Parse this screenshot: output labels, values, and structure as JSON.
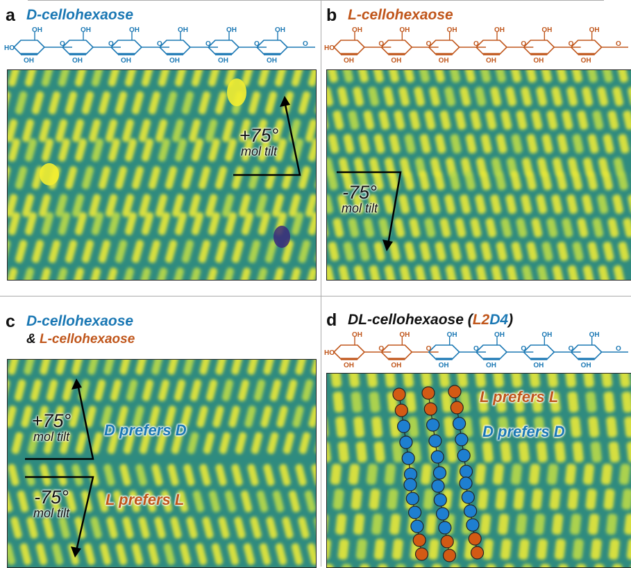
{
  "panels": {
    "a": {
      "label": "a",
      "title": "D-cellohexaose",
      "tilt": "+75°",
      "tilt_sub": "mol tilt"
    },
    "b": {
      "label": "b",
      "title": "L-cellohexaose",
      "tilt": "-75°",
      "tilt_sub": "mol tilt"
    },
    "c": {
      "label": "c",
      "title_line1": "D-cellohexaose",
      "amp": "& ",
      "title_line2": "L-cellohexaose",
      "tilt_up": "+75°",
      "tilt_down": "-75°",
      "tilt_sub": "mol tilt",
      "pref_d": "D prefers D",
      "pref_l": "L prefers L"
    },
    "d": {
      "label": "d",
      "title_pre": "DL-cellohexaose (",
      "title_l": "L2",
      "title_d": "D4",
      "title_post": ")",
      "pref_l": "L prefers L",
      "pref_d": "D prefers D"
    }
  },
  "chem_text": {
    "ho": "HO",
    "oh": "OH",
    "o": "O"
  },
  "colors": {
    "blue": "#1b78b4",
    "orange": "#c0561b",
    "stm_low": "#2e7d78",
    "stm_high": "#e8e83a",
    "bead_blue": "#1e7fd0",
    "bead_orange": "#d35a14"
  }
}
